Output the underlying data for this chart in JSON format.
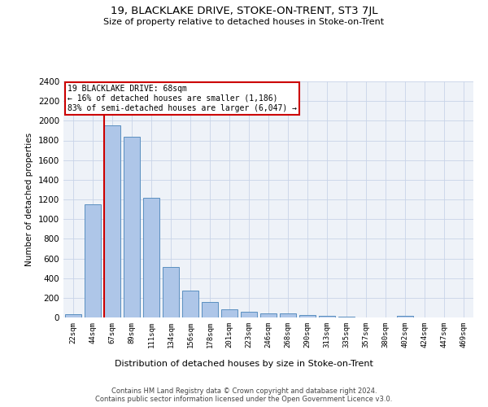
{
  "title": "19, BLACKLAKE DRIVE, STOKE-ON-TRENT, ST3 7JL",
  "subtitle": "Size of property relative to detached houses in Stoke-on-Trent",
  "xlabel": "Distribution of detached houses by size in Stoke-on-Trent",
  "ylabel": "Number of detached properties",
  "footer_line1": "Contains HM Land Registry data © Crown copyright and database right 2024.",
  "footer_line2": "Contains public sector information licensed under the Open Government Licence v3.0.",
  "categories": [
    "22sqm",
    "44sqm",
    "67sqm",
    "89sqm",
    "111sqm",
    "134sqm",
    "156sqm",
    "178sqm",
    "201sqm",
    "223sqm",
    "246sqm",
    "268sqm",
    "290sqm",
    "313sqm",
    "335sqm",
    "357sqm",
    "380sqm",
    "402sqm",
    "424sqm",
    "447sqm",
    "469sqm"
  ],
  "values": [
    30,
    1150,
    1950,
    1840,
    1220,
    510,
    270,
    155,
    85,
    55,
    45,
    45,
    25,
    20,
    10,
    0,
    0,
    20,
    0,
    0,
    0
  ],
  "bar_color": "#aec6e8",
  "bar_edge_color": "#5a8fc0",
  "grid_color": "#c8d4e8",
  "background_color": "#eef2f8",
  "annotation_line1": "19 BLACKLAKE DRIVE: 68sqm",
  "annotation_line2": "← 16% of detached houses are smaller (1,186)",
  "annotation_line3": "83% of semi-detached houses are larger (6,047) →",
  "annotation_box_color": "#ffffff",
  "annotation_box_edge_color": "#cc0000",
  "red_line_index": 2,
  "ylim": [
    0,
    2400
  ],
  "yticks": [
    0,
    200,
    400,
    600,
    800,
    1000,
    1200,
    1400,
    1600,
    1800,
    2000,
    2200,
    2400
  ]
}
